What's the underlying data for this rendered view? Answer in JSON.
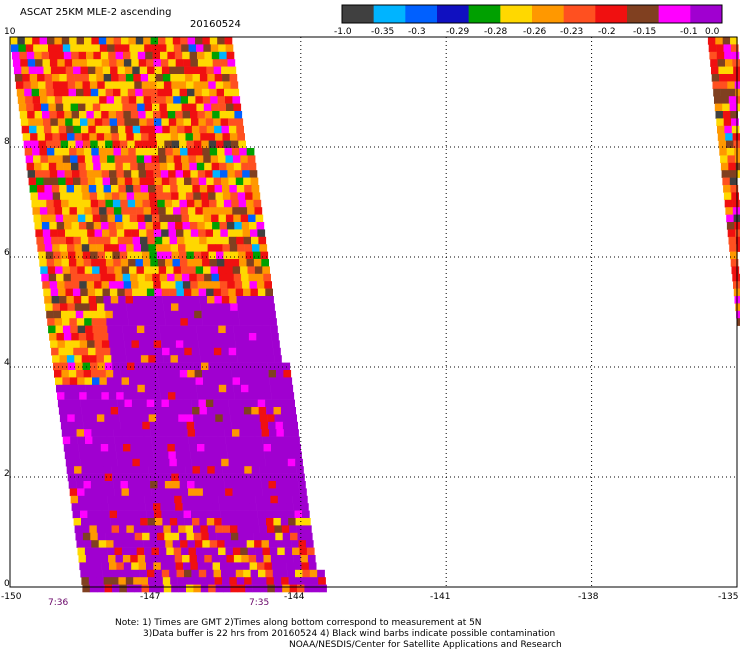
{
  "header": {
    "title": "ASCAT 25KM MLE-2 ascending",
    "date": "20160524"
  },
  "colorbar": {
    "colors": [
      "#404040",
      "#00b4ff",
      "#0060ff",
      "#1010c0",
      "#00a000",
      "#ffd800",
      "#ff9800",
      "#ff5020",
      "#f01010",
      "#804020",
      "#ff00ff",
      "#a000d0"
    ],
    "labels": [
      "-1.0",
      "-0.35",
      "-0.3",
      "-0.29",
      "-0.28",
      "-0.26",
      "-0.23",
      "-0.2",
      "-0.15",
      "-0.1",
      "0.0"
    ]
  },
  "map": {
    "y_ticks": [
      "10",
      "8",
      "6",
      "4",
      "2",
      "0"
    ],
    "x_ticks": [
      "-150",
      "-147",
      "-144",
      "-141",
      "-138",
      "-135"
    ],
    "xlim": [
      -150,
      -135
    ],
    "ylim": [
      0,
      10
    ],
    "grid": "dotted",
    "pass_times": [
      {
        "label": "7:36",
        "lon": -149.2
      },
      {
        "label": "7:35",
        "lon": -145.0
      }
    ],
    "swaths": [
      {
        "name": "main-swath",
        "lat_range": [
          0,
          10
        ],
        "west_lon_at_lat0": -148.5,
        "west_lon_at_lat10": -150,
        "east_lon_at_lat0": -143.6,
        "east_lon_at_lat10": -145.5
      },
      {
        "name": "east-swath",
        "lat_range": [
          4,
          10
        ],
        "west_lon_at_lat10": -135.6,
        "west_lon_at_lat4": -134.9,
        "east_lon": -134.8
      }
    ]
  },
  "footer": {
    "note_line1": "Note: 1) Times are GMT 2)Times along bottom correspond to measurement at 5N",
    "note_line2": "3)Data buffer is 22 hrs from 20160524 4) Black wind barbs indicate possible contamination",
    "credit": "NOAA/NESDIS/Center for Satellite Applications and Research"
  }
}
